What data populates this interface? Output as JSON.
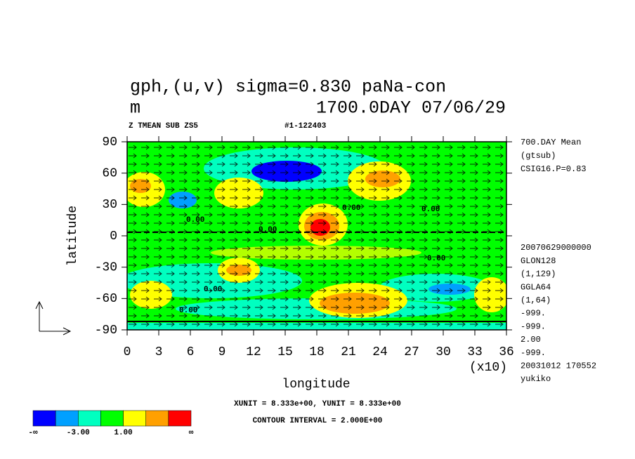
{
  "chart_data": {
    "type": "contour",
    "title_lines": [
      "gph,(u,v) sigma=0.830 paNa-con",
      "m",
      "1700.0DAY 07/06/29"
    ],
    "subtitle_left": "Z TMEAN SUB ZS5",
    "subtitle_right": "#1-122403",
    "x_label": "longitude",
    "y_label": "latitude",
    "x_multiplier": "(x10)",
    "xlim": [
      0,
      36
    ],
    "xticks": [
      0,
      3,
      6,
      9,
      12,
      15,
      18,
      21,
      24,
      27,
      30,
      33,
      36
    ],
    "ylim": [
      -90,
      90
    ],
    "yticks": [
      -90,
      -60,
      -30,
      0,
      30,
      60,
      90
    ],
    "side_info_top": [
      "700.DAY Mean",
      "(gtsub)",
      "CSIG16.P=0.83"
    ],
    "side_info_bottom": [
      "20070629000000",
      "GLON128",
      "(1,129)",
      "GGLA64",
      "(1,64)",
      "-999.",
      "-999.",
      "2.00",
      "-999.",
      "20031012 170552",
      "yukiko"
    ],
    "unit_note": "XUNIT = 8.333e+00, YUNIT = 8.333e+00",
    "contour_note": "CONTOUR INTERVAL = 2.000E+00",
    "contour_labels": [
      "0.00",
      "0.00",
      "0.00",
      "0.00",
      "0.00",
      "0.00",
      "0.00"
    ],
    "colorbar": {
      "colors": [
        "#0000ff",
        "#00a0ff",
        "#00ffc0",
        "#00ff00",
        "#ffff00",
        "#ffa000",
        "#ff0000"
      ],
      "labels": [
        "-∞",
        null,
        "-3.00",
        null,
        "1.00",
        null,
        null,
        "∞"
      ]
    }
  }
}
